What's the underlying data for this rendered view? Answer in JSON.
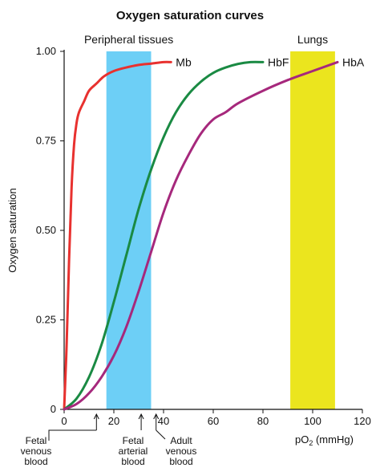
{
  "chart_data": {
    "type": "line",
    "title": "Oxygen saturation curves",
    "xlabel": "pO",
    "xlabel_sub": "2",
    "xlabel_unit": " (mmHg)",
    "ylabel": "Oxygen saturation",
    "xlim": [
      0,
      120
    ],
    "ylim": [
      0,
      1.0
    ],
    "x_ticks": [
      0,
      20,
      40,
      60,
      80,
      100,
      120
    ],
    "y_ticks": [
      0,
      0.25,
      0.5,
      0.75,
      1.0
    ],
    "y_tick_labels": [
      "0",
      "0.25",
      "0.50",
      "0.75",
      "1.00"
    ],
    "grid": false,
    "bands": [
      {
        "label": "Peripheral tissues",
        "x_start": 17,
        "x_end": 35,
        "color": "#6dcff6"
      },
      {
        "label": "Lungs",
        "x_start": 91,
        "x_end": 109,
        "color": "#ebe51e"
      }
    ],
    "series": [
      {
        "name": "Mb",
        "color": "#e8312f",
        "points": [
          [
            0,
            0
          ],
          [
            1,
            0.18
          ],
          [
            2,
            0.42
          ],
          [
            3,
            0.62
          ],
          [
            4,
            0.74
          ],
          [
            5,
            0.8
          ],
          [
            6,
            0.83
          ],
          [
            8,
            0.86
          ],
          [
            10,
            0.89
          ],
          [
            13,
            0.91
          ],
          [
            16,
            0.93
          ],
          [
            20,
            0.945
          ],
          [
            25,
            0.955
          ],
          [
            30,
            0.962
          ],
          [
            35,
            0.966
          ],
          [
            40,
            0.97
          ],
          [
            43,
            0.97
          ]
        ]
      },
      {
        "name": "HbF",
        "color": "#1a8a43",
        "points": [
          [
            0,
            0
          ],
          [
            5,
            0.03
          ],
          [
            10,
            0.09
          ],
          [
            15,
            0.18
          ],
          [
            20,
            0.3
          ],
          [
            25,
            0.43
          ],
          [
            30,
            0.56
          ],
          [
            35,
            0.67
          ],
          [
            40,
            0.76
          ],
          [
            45,
            0.83
          ],
          [
            50,
            0.88
          ],
          [
            55,
            0.915
          ],
          [
            60,
            0.94
          ],
          [
            65,
            0.955
          ],
          [
            70,
            0.965
          ],
          [
            75,
            0.97
          ],
          [
            80,
            0.97
          ]
        ]
      },
      {
        "name": "HbA",
        "color": "#a6287c",
        "points": [
          [
            0,
            0
          ],
          [
            5,
            0.015
          ],
          [
            10,
            0.045
          ],
          [
            15,
            0.09
          ],
          [
            20,
            0.15
          ],
          [
            25,
            0.23
          ],
          [
            30,
            0.33
          ],
          [
            35,
            0.44
          ],
          [
            40,
            0.55
          ],
          [
            45,
            0.64
          ],
          [
            50,
            0.71
          ],
          [
            55,
            0.77
          ],
          [
            60,
            0.81
          ],
          [
            65,
            0.83
          ],
          [
            70,
            0.855
          ],
          [
            80,
            0.89
          ],
          [
            90,
            0.92
          ],
          [
            100,
            0.945
          ],
          [
            110,
            0.97
          ]
        ]
      }
    ],
    "annotations": [
      {
        "x": 13,
        "lines": [
          "Fetal",
          "venous",
          "blood"
        ]
      },
      {
        "x": 31,
        "lines": [
          "Fetal",
          "arterial",
          "blood"
        ]
      },
      {
        "x": 37,
        "lines": [
          "Adult",
          "venous",
          "blood"
        ]
      }
    ]
  }
}
